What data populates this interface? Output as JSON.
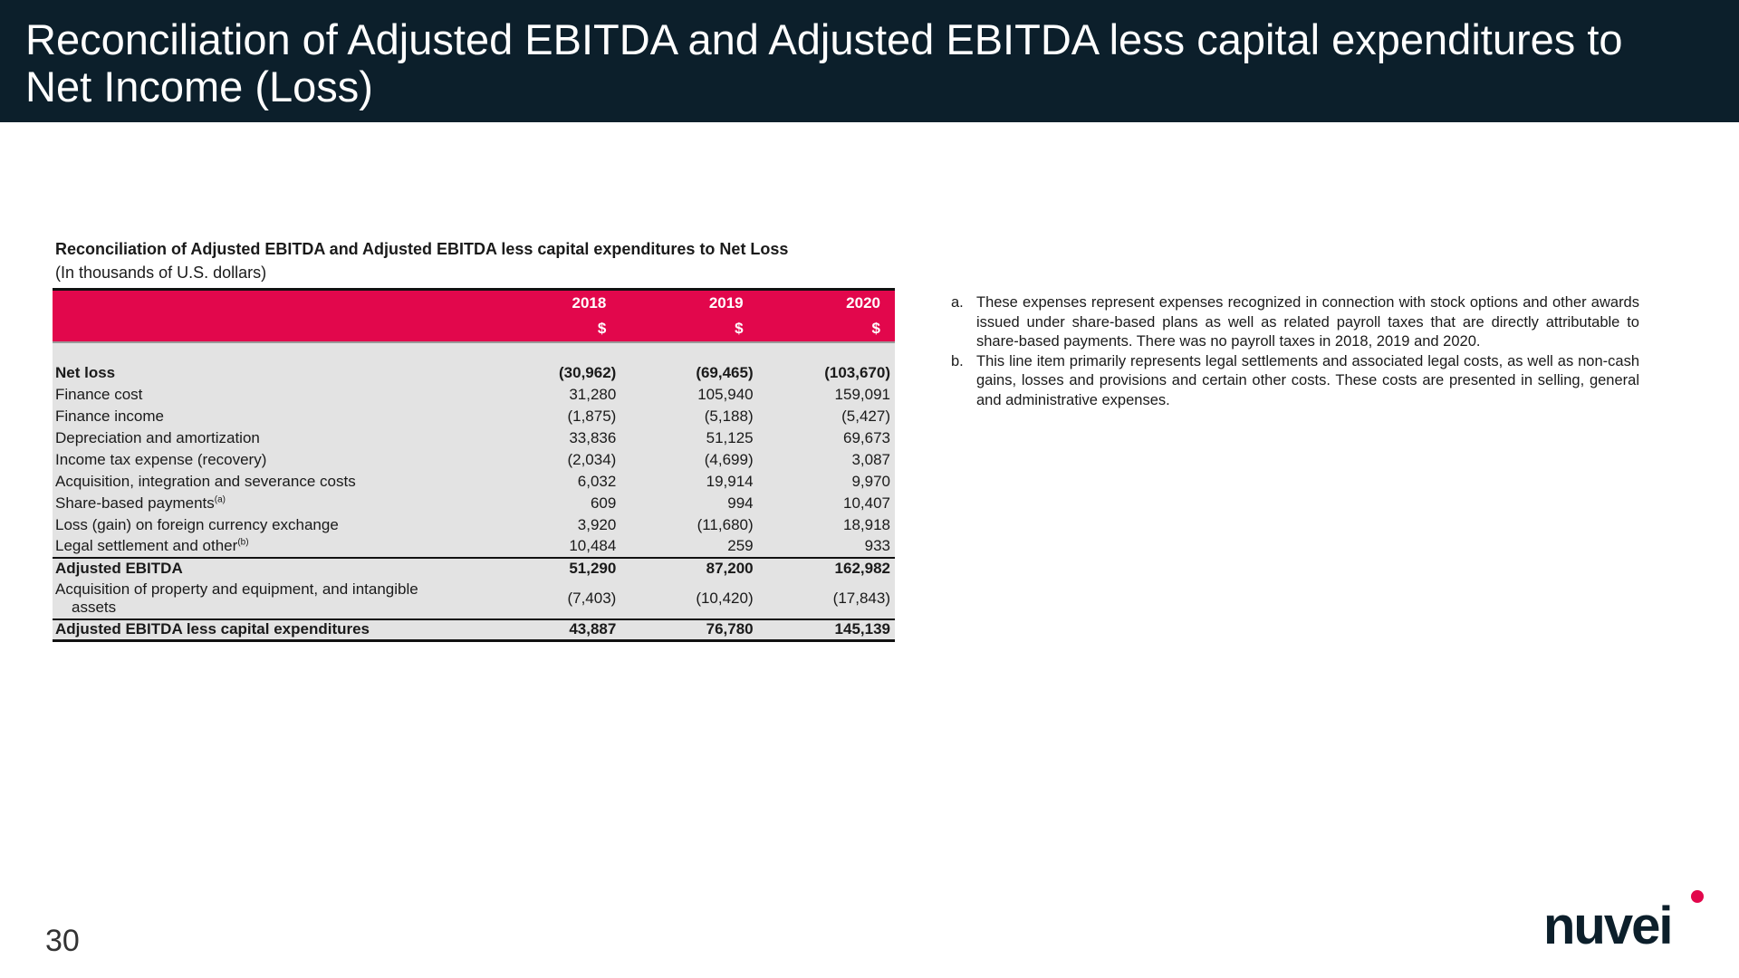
{
  "header": {
    "title": "Reconciliation of Adjusted EBITDA and Adjusted EBITDA less capital expenditures to Net Income (Loss)"
  },
  "table": {
    "title": "Reconciliation of Adjusted EBITDA and Adjusted EBITDA less capital expenditures to Net Loss",
    "subtitle": "(In thousands of U.S. dollars)",
    "years": [
      "2018",
      "2019",
      "2020"
    ],
    "currency": "$",
    "rows": [
      {
        "label": "Net loss",
        "sup": "",
        "v": [
          "(30,962)",
          "(69,465)",
          "(103,670)"
        ]
      },
      {
        "label": "Finance cost",
        "sup": "",
        "v": [
          "31,280",
          "105,940",
          "159,091"
        ]
      },
      {
        "label": "Finance income",
        "sup": "",
        "v": [
          "(1,875)",
          "(5,188)",
          "(5,427)"
        ]
      },
      {
        "label": "Depreciation and amortization",
        "sup": "",
        "v": [
          "33,836",
          "51,125",
          "69,673"
        ]
      },
      {
        "label": "Income tax expense (recovery)",
        "sup": "",
        "v": [
          "(2,034)",
          "(4,699)",
          "3,087"
        ]
      },
      {
        "label": "Acquisition, integration and severance costs",
        "sup": "",
        "v": [
          "6,032",
          "19,914",
          "9,970"
        ]
      },
      {
        "label": "Share-based payments",
        "sup": "(a)",
        "v": [
          "609",
          "994",
          "10,407"
        ]
      },
      {
        "label": "Loss (gain) on foreign currency exchange",
        "sup": "",
        "v": [
          "3,920",
          "(11,680)",
          "18,918"
        ]
      },
      {
        "label": "Legal settlement and other",
        "sup": "(b)",
        "v": [
          "10,484",
          "259",
          "933"
        ]
      },
      {
        "label": "Adjusted EBITDA",
        "sup": "",
        "v": [
          "51,290",
          "87,200",
          "162,982"
        ]
      },
      {
        "label": "Acquisition of property and equipment, and intangible",
        "label2": "assets",
        "sup": "",
        "v": [
          "(7,403)",
          "(10,420)",
          "(17,843)"
        ]
      },
      {
        "label": "Adjusted EBITDA less capital expenditures",
        "sup": "",
        "v": [
          "43,887",
          "76,780",
          "145,139"
        ]
      }
    ]
  },
  "notes": [
    {
      "marker": "a.",
      "text": "These expenses represent expenses recognized in connection with stock options and other awards issued under share-based plans as well as related payroll taxes that are directly attributable to share-based payments. There was no payroll taxes in 2018, 2019 and 2020."
    },
    {
      "marker": "b.",
      "text": "This line item primarily represents legal settlements and associated legal costs, as well as non-cash gains, losses and provisions and certain other costs. These costs are presented in selling, general and administrative expenses."
    }
  ],
  "footer": {
    "page_number": "30",
    "logo_text": "nuvei",
    "logo_color": "#0c1f2b",
    "logo_dot_color": "#e2074c"
  }
}
